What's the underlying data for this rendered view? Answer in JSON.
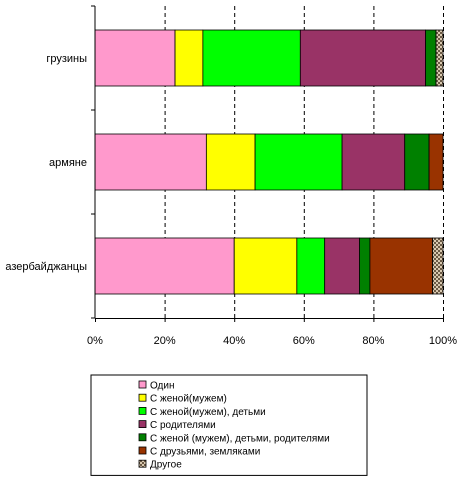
{
  "chart_data": {
    "type": "bar",
    "orientation": "horizontal",
    "stacked": "percent",
    "title": "",
    "xlabel": "",
    "ylabel": "",
    "xlim": [
      0,
      100
    ],
    "x_ticks": [
      "0%",
      "20%",
      "40%",
      "60%",
      "80%",
      "100%"
    ],
    "grid": "vertical dashed",
    "legend_position": "bottom",
    "categories": [
      "грузины",
      "армяне",
      "азербайджанцы"
    ],
    "series": [
      {
        "name": "Один",
        "color": "#ff99cc",
        "values": [
          23,
          32,
          40
        ]
      },
      {
        "name": "С женой(мужем)",
        "color": "#ffff00",
        "values": [
          8,
          14,
          18
        ]
      },
      {
        "name": "С женой(мужем), детьми",
        "color": "#00ff00",
        "values": [
          28,
          25,
          8
        ]
      },
      {
        "name": "С родителями",
        "color": "#993366",
        "values": [
          36,
          18,
          10
        ]
      },
      {
        "name": "С женой (мужем), детьми, родителями",
        "color": "#008000",
        "values": [
          3,
          7,
          3
        ]
      },
      {
        "name": "С друзьями, земляками",
        "color": "#993300",
        "values": [
          0,
          4,
          18
        ]
      },
      {
        "name": "Другое",
        "color": "#c0c0c0",
        "pattern": "checker",
        "values": [
          2,
          0,
          3
        ]
      }
    ]
  }
}
